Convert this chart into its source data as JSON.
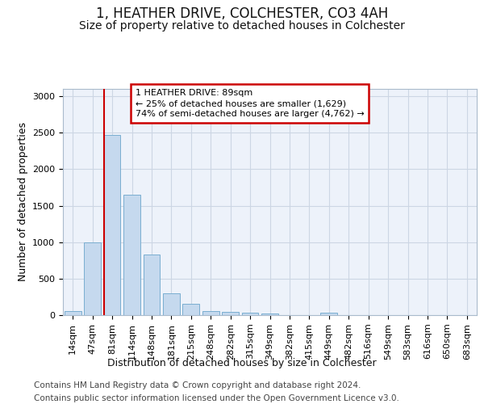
{
  "title": "1, HEATHER DRIVE, COLCHESTER, CO3 4AH",
  "subtitle": "Size of property relative to detached houses in Colchester",
  "xlabel": "Distribution of detached houses by size in Colchester",
  "ylabel": "Number of detached properties",
  "bar_color": "#c5d9ee",
  "bar_edge_color": "#7aaed0",
  "grid_color": "#ccd6e4",
  "bins": [
    "14sqm",
    "47sqm",
    "81sqm",
    "114sqm",
    "148sqm",
    "181sqm",
    "215sqm",
    "248sqm",
    "282sqm",
    "315sqm",
    "349sqm",
    "382sqm",
    "415sqm",
    "449sqm",
    "482sqm",
    "516sqm",
    "549sqm",
    "583sqm",
    "616sqm",
    "650sqm",
    "683sqm"
  ],
  "values": [
    50,
    1000,
    2470,
    1650,
    830,
    300,
    150,
    55,
    45,
    30,
    20,
    0,
    0,
    30,
    0,
    0,
    0,
    0,
    0,
    0,
    0
  ],
  "property_bin_index": 2,
  "annotation_line1": "1 HEATHER DRIVE: 89sqm",
  "annotation_line2": "← 25% of detached houses are smaller (1,629)",
  "annotation_line3": "74% of semi-detached houses are larger (4,762) →",
  "ylim_max": 3100,
  "yticks": [
    0,
    500,
    1000,
    1500,
    2000,
    2500,
    3000
  ],
  "footer_line1": "Contains HM Land Registry data © Crown copyright and database right 2024.",
  "footer_line2": "Contains public sector information licensed under the Open Government Licence v3.0.",
  "bg_color": "#edf2fa",
  "fig_bg": "#ffffff",
  "annotation_bg": "#ffffff",
  "annotation_edge": "#cc0000",
  "vline_color": "#cc0000",
  "title_fontsize": 12,
  "subtitle_fontsize": 10,
  "axis_label_fontsize": 9,
  "ann_fontsize": 8,
  "tick_fontsize": 8,
  "footer_fontsize": 7.5
}
